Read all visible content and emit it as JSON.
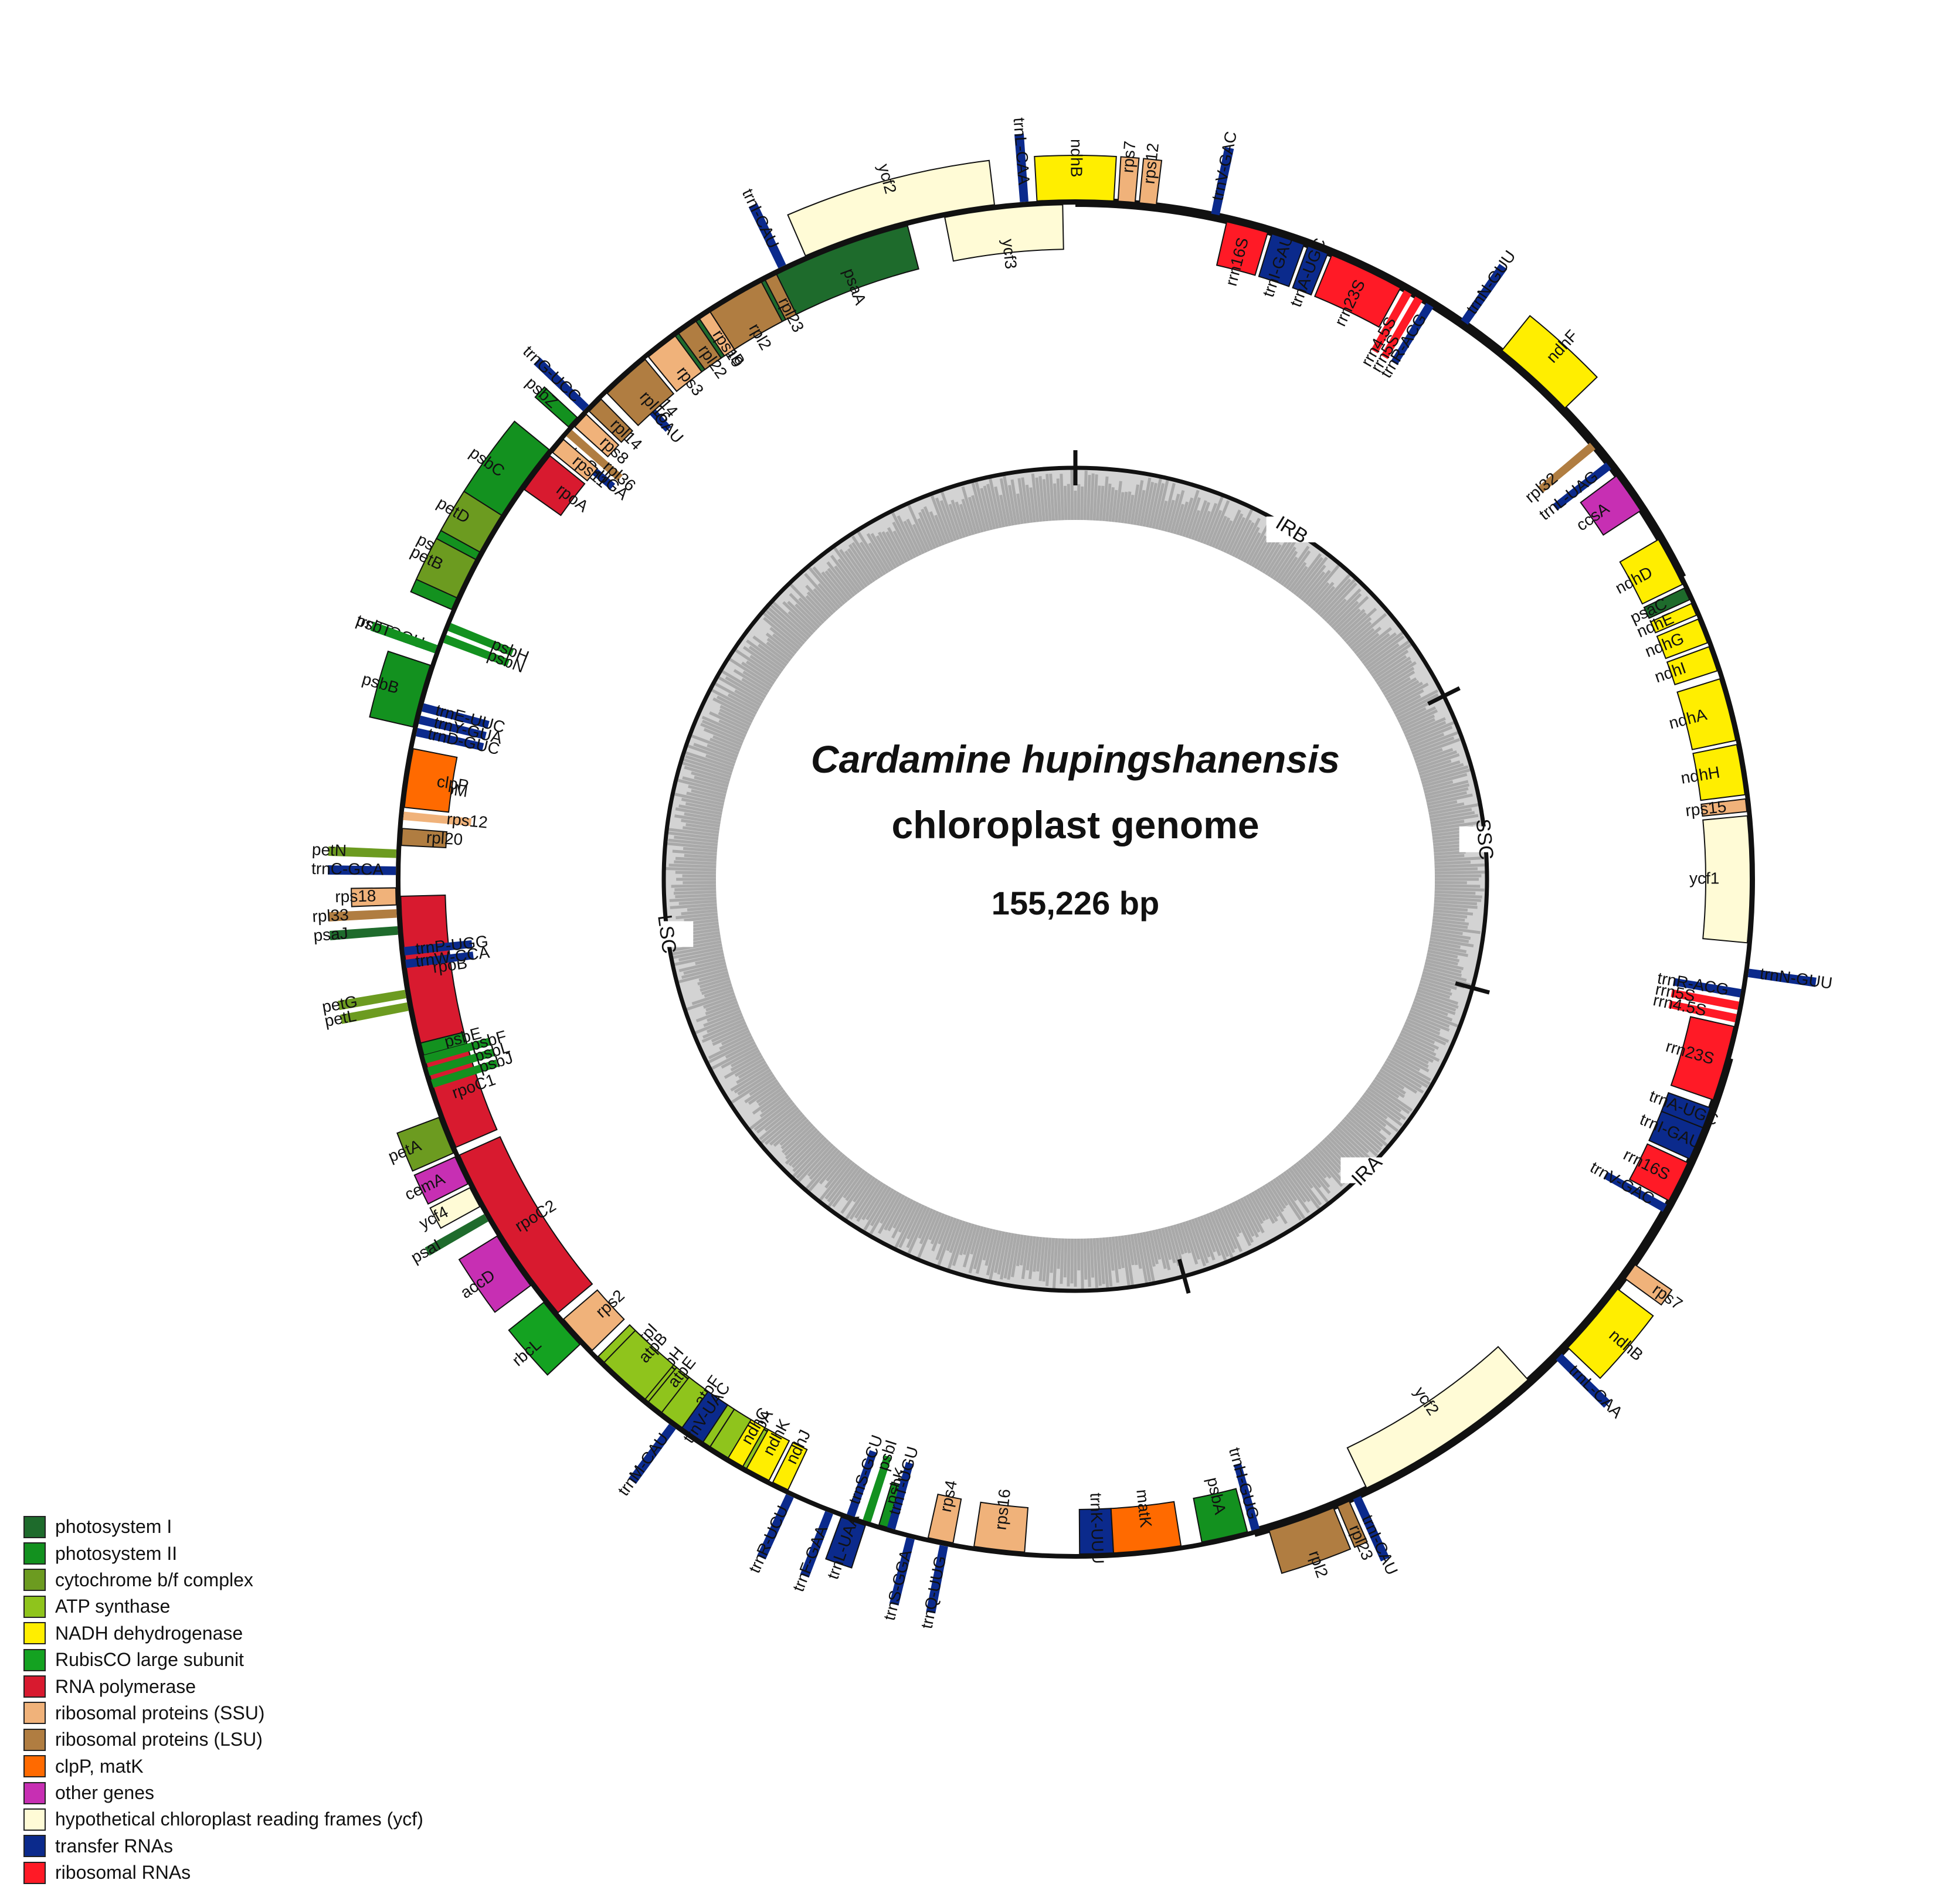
{
  "title": {
    "species": "Cardamine hupingshanensis",
    "subtitle": "chloroplast genome",
    "size": "155,226 bp"
  },
  "regions": [
    {
      "name": "LSC",
      "from": 0,
      "to": 0.5425
    },
    {
      "name": "IRA",
      "from": 0.5425,
      "to": 0.7075
    },
    {
      "name": "SSC",
      "from": 0.7075,
      "to": 0.8235
    },
    {
      "name": "IRB",
      "from": 0.8235,
      "to": 1.0
    }
  ],
  "categories": [
    {
      "id": "psi",
      "label": "photosystem I",
      "color": "#1e6b2c"
    },
    {
      "id": "psii",
      "label": "photosystem II",
      "color": "#13911f"
    },
    {
      "id": "cyt",
      "label": "cytochrome b/f complex",
      "color": "#6c9b20"
    },
    {
      "id": "atp",
      "label": "ATP synthase",
      "color": "#8fc41c"
    },
    {
      "id": "ndh",
      "label": "NADH dehydrogenase",
      "color": "#ffee00"
    },
    {
      "id": "rbc",
      "label": "RubisCO large subunit",
      "color": "#14a221"
    },
    {
      "id": "rna",
      "label": "RNA polymerase",
      "color": "#d81a2f"
    },
    {
      "id": "ssu",
      "label": "ribosomal proteins (SSU)",
      "color": "#f0b27a"
    },
    {
      "id": "lsu",
      "label": "ribosomal proteins (LSU)",
      "color": "#b07d41"
    },
    {
      "id": "clp",
      "label": "clpP, matK",
      "color": "#ff6a00"
    },
    {
      "id": "oth",
      "label": "other genes",
      "color": "#c72fb3"
    },
    {
      "id": "ycf",
      "label": "hypothetical chloroplast reading frames (ycf)",
      "color": "#fffbd6"
    },
    {
      "id": "trna",
      "label": "transfer RNAs",
      "color": "#0b2a8c"
    },
    {
      "id": "rrna",
      "label": "ribosomal RNAs",
      "color": "#ff1a26"
    }
  ],
  "genes": [
    {
      "name": "ycf3",
      "pos": 0.003,
      "len": 0.028,
      "cat": "ycf",
      "side": "in"
    },
    {
      "name": "psaA",
      "pos": 0.04,
      "len": 0.034,
      "cat": "psi",
      "side": "in"
    },
    {
      "name": "psaB",
      "pos": 0.075,
      "len": 0.034,
      "cat": "psi",
      "side": "in"
    },
    {
      "name": "rps14",
      "pos": 0.111,
      "len": 0.005,
      "cat": "ssu",
      "side": "in"
    },
    {
      "name": "trnfM-CAU",
      "pos": 0.116,
      "len": 0.002,
      "cat": "trna",
      "side": "in"
    },
    {
      "name": "trnG-UCC",
      "pos": 0.127,
      "len": 0.002,
      "cat": "trna",
      "side": "out"
    },
    {
      "name": "psbZ",
      "pos": 0.131,
      "len": 0.003,
      "cat": "psii",
      "side": "out"
    },
    {
      "name": "trnS-UGA",
      "pos": 0.137,
      "len": 0.002,
      "cat": "trna",
      "side": "in"
    },
    {
      "name": "psbC",
      "pos": 0.141,
      "len": 0.022,
      "cat": "psii",
      "side": "out"
    },
    {
      "name": "psbD",
      "pos": 0.163,
      "len": 0.022,
      "cat": "psii",
      "side": "out"
    },
    {
      "name": "trnT-GGU",
      "pos": 0.194,
      "len": 0.002,
      "cat": "trna",
      "side": "out"
    },
    {
      "name": "trnE-UUC",
      "pos": 0.208,
      "len": 0.002,
      "cat": "trna",
      "side": "in"
    },
    {
      "name": "trnY-GUA",
      "pos": 0.211,
      "len": 0.002,
      "cat": "trna",
      "side": "in"
    },
    {
      "name": "trnD-GUC",
      "pos": 0.214,
      "len": 0.002,
      "cat": "trna",
      "side": "in"
    },
    {
      "name": "psbM",
      "pos": 0.226,
      "len": 0.003,
      "cat": "psii",
      "side": "in"
    },
    {
      "name": "petN",
      "pos": 0.243,
      "len": 0.002,
      "cat": "cyt",
      "side": "out"
    },
    {
      "name": "trnC-GCA",
      "pos": 0.247,
      "len": 0.002,
      "cat": "trna",
      "side": "out"
    },
    {
      "name": "rpoB",
      "pos": 0.254,
      "len": 0.036,
      "cat": "rna",
      "side": "in"
    },
    {
      "name": "rpoC1",
      "pos": 0.291,
      "len": 0.024,
      "cat": "rna",
      "side": "in"
    },
    {
      "name": "rpoC2",
      "pos": 0.317,
      "len": 0.044,
      "cat": "rna",
      "side": "in"
    },
    {
      "name": "rps2",
      "pos": 0.363,
      "len": 0.01,
      "cat": "ssu",
      "side": "in"
    },
    {
      "name": "atpI",
      "pos": 0.375,
      "len": 0.01,
      "cat": "atp",
      "side": "in"
    },
    {
      "name": "atpH",
      "pos": 0.387,
      "len": 0.004,
      "cat": "atp",
      "side": "in"
    },
    {
      "name": "atpF",
      "pos": 0.393,
      "len": 0.016,
      "cat": "atp",
      "side": "in"
    },
    {
      "name": "atpA",
      "pos": 0.409,
      "len": 0.016,
      "cat": "atp",
      "side": "in"
    },
    {
      "name": "trnR-UCU",
      "pos": 0.43,
      "len": 0.002,
      "cat": "trna",
      "side": "out"
    },
    {
      "name": "trnS-GCU",
      "pos": 0.445,
      "len": 0.002,
      "cat": "trna",
      "side": "in"
    },
    {
      "name": "psbI",
      "pos": 0.449,
      "len": 0.002,
      "cat": "psii",
      "side": "in"
    },
    {
      "name": "psbK",
      "pos": 0.453,
      "len": 0.003,
      "cat": "psii",
      "side": "in"
    },
    {
      "name": "trnQ-UUG",
      "pos": 0.468,
      "len": 0.002,
      "cat": "trna",
      "side": "out"
    },
    {
      "name": "rps16",
      "pos": 0.476,
      "len": 0.012,
      "cat": "ssu",
      "side": "in"
    },
    {
      "name": "trnK-UUU",
      "pos": 0.501,
      "len": 0.008,
      "cat": "trna",
      "side": "in"
    },
    {
      "name": "matK",
      "pos": 0.509,
      "len": 0.016,
      "cat": "clp",
      "side": "in"
    },
    {
      "name": "psbA",
      "pos": 0.53,
      "len": 0.011,
      "cat": "psii",
      "side": "in"
    },
    {
      "name": "trnH-GUG",
      "pos": 0.542,
      "len": 0.002,
      "cat": "trna",
      "side": "in"
    },
    {
      "name": "rpl2",
      "pos": 0.546,
      "len": 0.016,
      "cat": "lsu",
      "side": "out"
    },
    {
      "name": "rpl23",
      "pos": 0.563,
      "len": 0.003,
      "cat": "lsu",
      "side": "out"
    },
    {
      "name": "trnI-CAU",
      "pos": 0.567,
      "len": 0.002,
      "cat": "trna",
      "side": "out"
    },
    {
      "name": "ycf2",
      "pos": 0.571,
      "len": 0.046,
      "cat": "ycf",
      "side": "in"
    },
    {
      "name": "trnL-CAA",
      "pos": 0.625,
      "len": 0.002,
      "cat": "trna",
      "side": "out"
    },
    {
      "name": "ndhB",
      "pos": 0.629,
      "len": 0.018,
      "cat": "ndh",
      "side": "out"
    },
    {
      "name": "rps7",
      "pos": 0.65,
      "len": 0.004,
      "cat": "ssu",
      "side": "out"
    },
    {
      "name": "trnV-GAC",
      "pos": 0.668,
      "len": 0.002,
      "cat": "trna",
      "side": "in"
    },
    {
      "name": "rrn16S",
      "pos": 0.671,
      "len": 0.01,
      "cat": "rrna",
      "side": "in"
    },
    {
      "name": "trnI-GAU",
      "pos": 0.682,
      "len": 0.008,
      "cat": "trna",
      "side": "in"
    },
    {
      "name": "trnA-UGC",
      "pos": 0.69,
      "len": 0.005,
      "cat": "trna",
      "side": "in"
    },
    {
      "name": "rrn23S",
      "pos": 0.697,
      "len": 0.018,
      "cat": "rrna",
      "side": "in"
    },
    {
      "name": "rrn4.5S",
      "pos": 0.716,
      "len": 0.002,
      "cat": "rrna",
      "side": "in"
    },
    {
      "name": "rrn5S",
      "pos": 0.719,
      "len": 0.002,
      "cat": "rrna",
      "side": "in"
    },
    {
      "name": "trnR-ACG",
      "pos": 0.722,
      "len": 0.002,
      "cat": "trna",
      "side": "in"
    },
    {
      "name": "trnN-GUU",
      "pos": 0.727,
      "len": 0.002,
      "cat": "trna",
      "side": "out"
    },
    {
      "name": "ycf1",
      "pos": 0.735,
      "len": 0.03,
      "cat": "ycf",
      "side": "in"
    },
    {
      "name": "rps15",
      "pos": 0.766,
      "len": 0.003,
      "cat": "ssu",
      "side": "in"
    },
    {
      "name": "ndhH",
      "pos": 0.77,
      "len": 0.012,
      "cat": "ndh",
      "side": "in"
    },
    {
      "name": "ndhA",
      "pos": 0.783,
      "len": 0.015,
      "cat": "ndh",
      "side": "in"
    },
    {
      "name": "ndhI",
      "pos": 0.8,
      "len": 0.006,
      "cat": "ndh",
      "side": "in"
    },
    {
      "name": "ndhG",
      "pos": 0.807,
      "len": 0.006,
      "cat": "ndh",
      "side": "in"
    },
    {
      "name": "ndhE",
      "pos": 0.814,
      "len": 0.003,
      "cat": "ndh",
      "side": "in"
    },
    {
      "name": "psaC",
      "pos": 0.818,
      "len": 0.003,
      "cat": "psi",
      "side": "in"
    },
    {
      "name": "ndhD",
      "pos": 0.822,
      "len": 0.012,
      "cat": "ndh",
      "side": "in"
    },
    {
      "name": "ccsA",
      "pos": 0.842,
      "len": 0.01,
      "cat": "oth",
      "side": "in"
    },
    {
      "name": "trnL-UAG",
      "pos": 0.854,
      "len": 0.002,
      "cat": "trna",
      "side": "in"
    },
    {
      "name": "rpl32",
      "pos": 0.86,
      "len": 0.002,
      "cat": "lsu",
      "side": "in"
    },
    {
      "name": "ndhF",
      "pos": 0.872,
      "len": 0.02,
      "cat": "ndh",
      "side": "out"
    },
    {
      "name": "trnN-GUU",
      "pos": 0.902,
      "len": 0.002,
      "cat": "trna",
      "side": "out"
    },
    {
      "name": "trnR-ACG",
      "pos": 0.911,
      "len": 0.002,
      "cat": "trna",
      "side": "in"
    },
    {
      "name": "rrn5S",
      "pos": 0.914,
      "len": 0.002,
      "cat": "rrna",
      "side": "in"
    },
    {
      "name": "rrn4.5S",
      "pos": 0.917,
      "len": 0.002,
      "cat": "rrna",
      "side": "in"
    },
    {
      "name": "rrn23S",
      "pos": 0.92,
      "len": 0.018,
      "cat": "rrna",
      "side": "in"
    },
    {
      "name": "trnA-UGC",
      "pos": 0.939,
      "len": 0.005,
      "cat": "trna",
      "side": "in"
    },
    {
      "name": "trnI-GAU",
      "pos": 0.945,
      "len": 0.008,
      "cat": "trna",
      "side": "in"
    },
    {
      "name": "rrn16S",
      "pos": 0.954,
      "len": 0.01,
      "cat": "rrna",
      "side": "in"
    },
    {
      "name": "trnV-GAC",
      "pos": 0.966,
      "len": 0.002,
      "cat": "trna",
      "side": "out"
    },
    {
      "name": "rps12",
      "pos": 0.981,
      "len": 0.004,
      "cat": "ssu",
      "side": "out"
    },
    {
      "name": "rps7",
      "pos": 0.986,
      "len": 0.004,
      "cat": "ssu",
      "side": "out"
    },
    {
      "name": "ndhB",
      "pos": 0.991,
      "len": 0.018,
      "cat": "ndh",
      "side": "out"
    },
    {
      "name": "trnL-CAA",
      "pos": 1.011,
      "len": 0.002,
      "cat": "trna",
      "side": "out"
    },
    {
      "name": "ycf2",
      "pos": 1.019,
      "len": 0.046,
      "cat": "ycf",
      "side": "out"
    },
    {
      "name": "trnI-CAU",
      "pos": 1.07,
      "len": 0.002,
      "cat": "trna",
      "side": "out"
    },
    {
      "name": "rpl23",
      "pos": 1.073,
      "len": 0.003,
      "cat": "lsu",
      "side": "in"
    },
    {
      "name": "rpl2",
      "pos": 1.077,
      "len": 0.014,
      "cat": "lsu",
      "side": "in"
    },
    {
      "name": "rps19",
      "pos": 1.091,
      "len": 0.003,
      "cat": "ssu",
      "side": "in"
    },
    {
      "name": "rpl22",
      "pos": 1.095,
      "len": 0.005,
      "cat": "lsu",
      "side": "in"
    },
    {
      "name": "rps3",
      "pos": 1.101,
      "len": 0.008,
      "cat": "ssu",
      "side": "in"
    },
    {
      "name": "rpl16",
      "pos": 1.11,
      "len": 0.012,
      "cat": "lsu",
      "side": "in"
    },
    {
      "name": "rpl14",
      "pos": 1.124,
      "len": 0.004,
      "cat": "lsu",
      "side": "in"
    },
    {
      "name": "rps8",
      "pos": 1.129,
      "len": 0.004,
      "cat": "ssu",
      "side": "in"
    },
    {
      "name": "rpl36",
      "pos": 1.134,
      "len": 0.002,
      "cat": "lsu",
      "side": "in"
    },
    {
      "name": "rps11",
      "pos": 1.137,
      "len": 0.004,
      "cat": "ssu",
      "side": "in"
    },
    {
      "name": "rpoA",
      "pos": 1.142,
      "len": 0.01,
      "cat": "rna",
      "side": "in"
    },
    {
      "name": "petD",
      "pos": 1.16,
      "len": 0.01,
      "cat": "cyt",
      "side": "out"
    },
    {
      "name": "petB",
      "pos": 1.172,
      "len": 0.01,
      "cat": "cyt",
      "side": "out"
    },
    {
      "name": "psbH",
      "pos": 1.188,
      "len": 0.002,
      "cat": "psii",
      "side": "in"
    },
    {
      "name": "psbN",
      "pos": 1.191,
      "len": 0.002,
      "cat": "psii",
      "side": "in"
    },
    {
      "name": "psbT",
      "pos": 1.194,
      "len": 0.002,
      "cat": "psii",
      "side": "out"
    },
    {
      "name": "psbB",
      "pos": 1.199,
      "len": 0.015,
      "cat": "psii",
      "side": "out"
    },
    {
      "name": "clpP",
      "pos": 1.219,
      "len": 0.014,
      "cat": "clp",
      "side": "in"
    },
    {
      "name": "rps12",
      "pos": 1.234,
      "len": 0.002,
      "cat": "ssu",
      "side": "in"
    },
    {
      "name": "rpl20",
      "pos": 1.238,
      "len": 0.004,
      "cat": "lsu",
      "side": "in"
    },
    {
      "name": "rps18",
      "pos": 1.252,
      "len": 0.004,
      "cat": "ssu",
      "side": "out"
    },
    {
      "name": "rpl33",
      "pos": 1.257,
      "len": 0.002,
      "cat": "lsu",
      "side": "out"
    },
    {
      "name": "psaJ",
      "pos": 1.261,
      "len": 0.002,
      "cat": "psi",
      "side": "out"
    },
    {
      "name": "trnP-UGG",
      "pos": 1.266,
      "len": 0.002,
      "cat": "trna",
      "side": "in"
    },
    {
      "name": "trnW-CCA",
      "pos": 1.269,
      "len": 0.002,
      "cat": "trna",
      "side": "in"
    },
    {
      "name": "petG",
      "pos": 1.276,
      "len": 0.002,
      "cat": "cyt",
      "side": "out"
    },
    {
      "name": "petL",
      "pos": 1.279,
      "len": 0.002,
      "cat": "cyt",
      "side": "out"
    },
    {
      "name": "psbE",
      "pos": 1.289,
      "len": 0.003,
      "cat": "psii",
      "side": "in"
    },
    {
      "name": "psbF",
      "pos": 1.292,
      "len": 0.002,
      "cat": "psii",
      "side": "in"
    },
    {
      "name": "psbL",
      "pos": 1.295,
      "len": 0.002,
      "cat": "psii",
      "side": "in"
    },
    {
      "name": "psbJ",
      "pos": 1.298,
      "len": 0.002,
      "cat": "psii",
      "side": "in"
    },
    {
      "name": "petA",
      "pos": 1.307,
      "len": 0.009,
      "cat": "cyt",
      "side": "out"
    },
    {
      "name": "cemA",
      "pos": 1.317,
      "len": 0.007,
      "cat": "oth",
      "side": "out"
    },
    {
      "name": "ycf4",
      "pos": 1.325,
      "len": 0.005,
      "cat": "ycf",
      "side": "out"
    },
    {
      "name": "psaI",
      "pos": 1.332,
      "len": 0.002,
      "cat": "psi",
      "side": "out"
    },
    {
      "name": "accD",
      "pos": 1.338,
      "len": 0.014,
      "cat": "oth",
      "side": "out"
    },
    {
      "name": "rbcL",
      "pos": 1.357,
      "len": 0.013,
      "cat": "rbc",
      "side": "out"
    },
    {
      "name": "atpB",
      "pos": 1.377,
      "len": 0.013,
      "cat": "atp",
      "side": "in"
    },
    {
      "name": "atpE",
      "pos": 1.391,
      "len": 0.004,
      "cat": "atp",
      "side": "in"
    },
    {
      "name": "trnM-CAU",
      "pos": 1.398,
      "len": 0.002,
      "cat": "trna",
      "side": "out"
    },
    {
      "name": "trnV-UAC",
      "pos": 1.401,
      "len": 0.006,
      "cat": "trna",
      "side": "in"
    },
    {
      "name": "ndhC",
      "pos": 1.414,
      "len": 0.004,
      "cat": "ndh",
      "side": "in"
    },
    {
      "name": "ndhK",
      "pos": 1.419,
      "len": 0.006,
      "cat": "ndh",
      "side": "in"
    },
    {
      "name": "ndhJ",
      "pos": 1.426,
      "len": 0.004,
      "cat": "ndh",
      "side": "in"
    },
    {
      "name": "trnF-GAA",
      "pos": 1.44,
      "len": 0.002,
      "cat": "trna",
      "side": "out"
    },
    {
      "name": "trnL-UAA",
      "pos": 1.444,
      "len": 0.006,
      "cat": "trna",
      "side": "out"
    },
    {
      "name": "trnT-UGU",
      "pos": 1.455,
      "len": 0.002,
      "cat": "trna",
      "side": "in"
    },
    {
      "name": "trnS-GGA",
      "pos": 1.46,
      "len": 0.002,
      "cat": "trna",
      "side": "out"
    },
    {
      "name": "rps4",
      "pos": 1.465,
      "len": 0.006,
      "cat": "ssu",
      "side": "in"
    }
  ]
}
